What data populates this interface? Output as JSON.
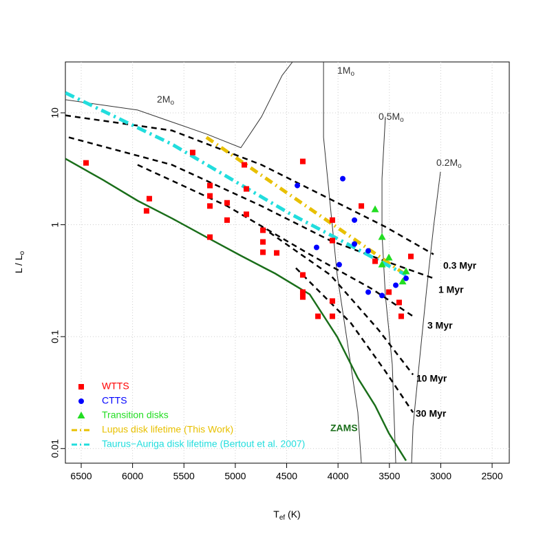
{
  "chart_data": {
    "type": "scatter",
    "x_label": [
      "T",
      "ef",
      " (K)"
    ],
    "y_label": [
      "L / L",
      "o"
    ],
    "xlim": [
      6654,
      2333
    ],
    "ylim": [
      0.0074,
      28.5
    ],
    "log_y": true,
    "grid": true,
    "xticks": [
      6500,
      6000,
      5500,
      5000,
      4500,
      4000,
      3500,
      3000,
      2500
    ],
    "yticks": [
      0.01,
      0.1,
      1,
      10
    ],
    "series": [
      {
        "name": "WTTS",
        "color": "#ff0000",
        "marker": "square",
        "x": [
          6453,
          5837,
          5864,
          5415,
          5247,
          5247,
          5247,
          5247,
          5080,
          5080,
          4912,
          4892,
          4892,
          4731,
          4731,
          4731,
          4597,
          4343,
          4343,
          4343,
          4343,
          4195,
          4055,
          4055,
          4055,
          4055,
          3773,
          3639,
          3505,
          3405,
          3385,
          3291
        ],
        "values": [
          3.57,
          1.71,
          1.33,
          4.42,
          2.24,
          1.81,
          1.47,
          0.775,
          1.57,
          1.1,
          3.43,
          2.09,
          1.24,
          0.893,
          0.702,
          0.568,
          0.56,
          3.68,
          0.356,
          0.25,
          0.226,
          0.152,
          0.152,
          0.208,
          1.1,
          0.722,
          1.47,
          0.472,
          0.25,
          0.202,
          0.152,
          0.521
        ]
      },
      {
        "name": "CTTS",
        "color": "#0000ff",
        "marker": "circle",
        "x": [
          4396,
          3954,
          4209,
          3840,
          3840,
          3706,
          3706,
          3572,
          3438,
          3338,
          3988
        ],
        "values": [
          2.24,
          2.58,
          0.627,
          1.1,
          0.673,
          0.584,
          0.25,
          0.233,
          0.288,
          0.332,
          0.44
        ]
      },
      {
        "name": "Transition disks",
        "color": "#22dd22",
        "marker": "triangle",
        "x": [
          3639,
          3572,
          3505,
          3371,
          3338,
          3572
        ],
        "values": [
          1.37,
          0.775,
          0.507,
          0.31,
          0.382,
          0.44
        ]
      }
    ],
    "lines": [
      {
        "name": "Lupus disk lifetime (This Work)",
        "color": "#e8c000",
        "x": [
          5281,
          3338
        ],
        "values": [
          6.04,
          0.356
        ]
      },
      {
        "name": "Taurus−Auriga disk lifetime (Bertout et al. 2007)",
        "color": "#22dddd",
        "x": [
          6654,
          5616,
          4477,
          3338
        ],
        "values": [
          15.1,
          5.24,
          1.27,
          0.356
        ]
      }
    ],
    "zams": {
      "label": "ZAMS",
      "color": "#1a6e1a",
      "x": [
        6654,
        6286,
        5951,
        5616,
        5281,
        4946,
        4611,
        4276,
        4008,
        3807,
        3639,
        3505,
        3338
      ],
      "values": [
        3.89,
        2.51,
        1.64,
        1.14,
        0.775,
        0.529,
        0.366,
        0.239,
        0.0995,
        0.0426,
        0.0242,
        0.0137,
        0.0078
      ]
    },
    "tracks": [
      {
        "label": [
          "2M",
          "o"
        ],
        "x": [
          6654,
          5951,
          5281,
          4946,
          4745,
          4544,
          4443
        ],
        "values": [
          13.1,
          10.6,
          6.47,
          4.88,
          9.22,
          21.6,
          28.5
        ]
      },
      {
        "label": [
          "1M",
          "o"
        ],
        "x": [
          4141,
          4141,
          4075,
          4008,
          3907,
          3807,
          3773
        ],
        "values": [
          28.5,
          6.04,
          1.47,
          0.356,
          0.0865,
          0.021,
          0.0074
        ]
      },
      {
        "label": [
          "0.5M",
          "o"
        ],
        "x": [
          3539,
          3572,
          3572,
          3539,
          3472,
          3438
        ],
        "values": [
          9.22,
          2.58,
          0.832,
          0.233,
          0.0565,
          0.0074
        ]
      },
      {
        "label": [
          "0.2M",
          "o"
        ],
        "x": [
          3003,
          3070,
          3137,
          3204,
          3270,
          3284
        ],
        "values": [
          2.97,
          0.958,
          0.268,
          0.0652,
          0.0158,
          0.0074
        ]
      }
    ],
    "isochrones": [
      {
        "label": "0.3 Myr",
        "x": [
          6654,
          5616,
          4745,
          4075,
          3539,
          3070
        ],
        "values": [
          9.49,
          6.95,
          3.43,
          1.69,
          0.958,
          0.544
        ]
      },
      {
        "label": "1 Myr",
        "x": [
          6621,
          5616,
          4745,
          4075,
          3539,
          3070
        ],
        "values": [
          6.04,
          3.43,
          1.47,
          0.722,
          0.472,
          0.332
        ]
      },
      {
        "label": "3 Myr",
        "x": [
          5951,
          5080,
          4276,
          3673,
          3270
        ],
        "values": [
          3.43,
          1.47,
          0.544,
          0.268,
          0.152
        ]
      },
      {
        "label": "10 Myr",
        "x": [
          4745,
          4075,
          3606,
          3270
        ],
        "values": [
          0.958,
          0.356,
          0.115,
          0.0457
        ]
      },
      {
        "label": "30 Myr",
        "x": [
          4410,
          3874,
          3539,
          3270
        ],
        "values": [
          0.41,
          0.132,
          0.049,
          0.021
        ]
      }
    ]
  }
}
